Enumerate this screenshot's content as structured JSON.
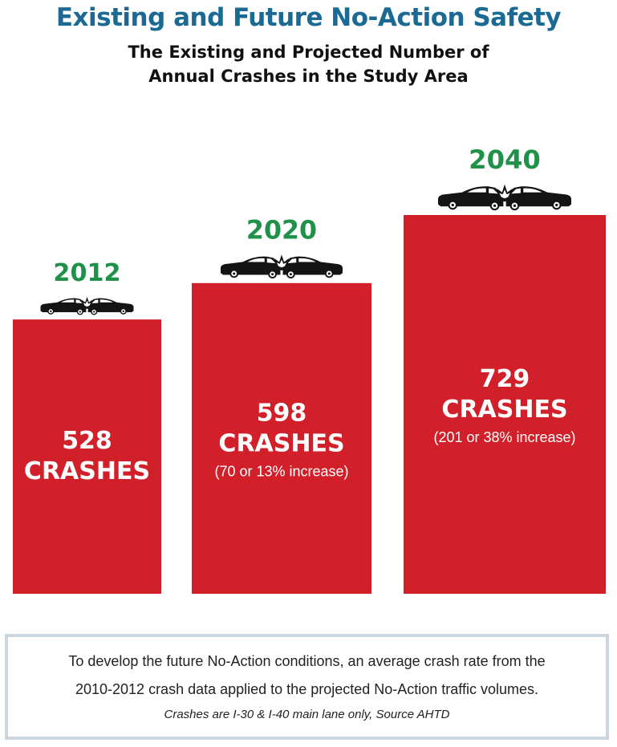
{
  "header": {
    "title": "Existing and Future No-Action Safety",
    "subtitle_line1": "The Existing and Projected Number of",
    "subtitle_line2": "Annual Crashes in the Study Area"
  },
  "chart_data": {
    "type": "bar",
    "title": "The Existing and Projected Number of Annual Crashes in the Study Area",
    "categories": [
      "2012",
      "2020",
      "2040"
    ],
    "values": [
      528,
      598,
      729
    ],
    "value_labels": [
      "528",
      "598",
      "729"
    ],
    "unit_label": "CRASHES",
    "annotations": [
      "",
      "(70 or 13% increase)",
      "(201 or 38% increase)"
    ],
    "bar_color": "#d1202a",
    "year_color": "#1f9148",
    "icon": "car-crash-icon",
    "grid": false,
    "ylim": [
      0,
      729
    ]
  },
  "note": {
    "line1": "To develop the future No-Action conditions, an average crash rate from the",
    "line2": "2010-2012 crash data applied to the projected No-Action traffic volumes.",
    "source": "Crashes are I-30 & I-40 main lane only, Source AHTD"
  }
}
